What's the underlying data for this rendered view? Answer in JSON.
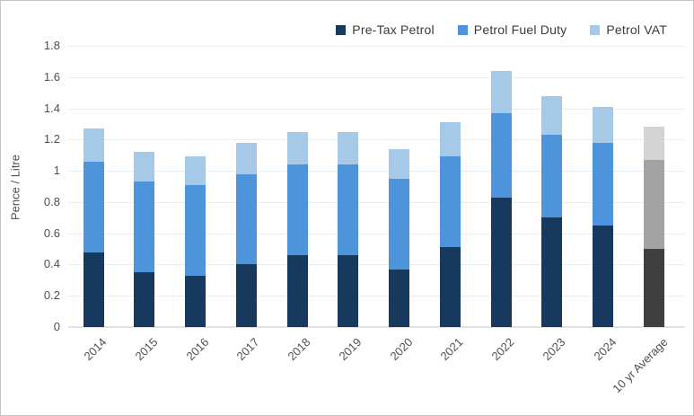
{
  "frame": {
    "background": "#ffffff",
    "border_color": "#c4c4c4"
  },
  "legend": {
    "position": "top-right",
    "items": [
      {
        "label": "Pre-Tax Petrol",
        "color": "#18395e"
      },
      {
        "label": "Petrol Fuel Duty",
        "color": "#4e94da"
      },
      {
        "label": "Petrol VAT",
        "color": "#a6c9e8"
      }
    ]
  },
  "chart_data": {
    "type": "bar",
    "stacked": true,
    "title": "",
    "xlabel": "",
    "ylabel": "Pence / Litre",
    "ylim": [
      0,
      1.8
    ],
    "ytick_step": 0.2,
    "ytick_labels": [
      "0",
      "0.2",
      "0.4",
      "0.6",
      "0.8",
      "1",
      "1.2",
      "1.4",
      "1.6",
      "1.8"
    ],
    "grid": true,
    "legend_position": "top-right",
    "categories": [
      "2014",
      "2015",
      "2016",
      "2017",
      "2018",
      "2019",
      "2020",
      "2021",
      "2022",
      "2023",
      "2024",
      "10 yr Average"
    ],
    "series": [
      {
        "name": "Pre-Tax Petrol",
        "color": "#18395e",
        "values": [
          0.48,
          0.35,
          0.33,
          0.4,
          0.46,
          0.46,
          0.37,
          0.51,
          0.83,
          0.7,
          0.65,
          0.5
        ]
      },
      {
        "name": "Petrol Fuel Duty",
        "color": "#4e94da",
        "values": [
          0.58,
          0.58,
          0.58,
          0.58,
          0.58,
          0.58,
          0.58,
          0.58,
          0.54,
          0.53,
          0.53,
          0.57
        ]
      },
      {
        "name": "Petrol VAT",
        "color": "#a6c9e8",
        "values": [
          0.21,
          0.19,
          0.18,
          0.2,
          0.21,
          0.21,
          0.19,
          0.22,
          0.27,
          0.25,
          0.23,
          0.21
        ]
      }
    ],
    "totals": [
      1.27,
      1.12,
      1.09,
      1.18,
      1.25,
      1.25,
      1.14,
      1.31,
      1.64,
      1.48,
      1.41,
      1.28
    ],
    "highlight_category": {
      "name": "10 yr Average",
      "segment_colors": [
        "#3f3f3f",
        "#a3a3a3",
        "#d4d4d4"
      ]
    },
    "colors": {
      "gridline": "#e4eef8",
      "baseline": "#e2e2e2",
      "axis_text": "#4f4f4f",
      "legend_text": "#3a3a3a"
    }
  }
}
